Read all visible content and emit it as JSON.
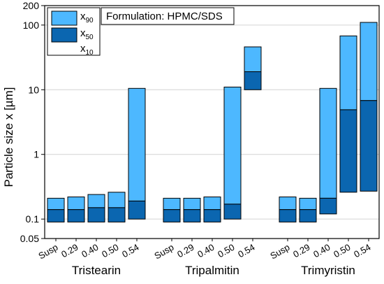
{
  "chart_data": {
    "type": "bar",
    "ylabel": "Particle size x [µm]",
    "ylabel_mu": "µ",
    "ylabel_pre": "Particle size x [",
    "ylabel_post": "m]",
    "yscale": "log",
    "ylim": [
      0.05,
      200
    ],
    "yticks": [
      0.05,
      0.1,
      1,
      10,
      100,
      200
    ],
    "ytick_labels": [
      "0.05",
      "0.1",
      "1",
      "10",
      "100",
      "200"
    ],
    "grid": true,
    "annotation": "Formulation: HPMC/SDS",
    "legend": {
      "placement": "top-left",
      "entries": [
        {
          "base": "x",
          "sub": "90",
          "color": "#4db8ff"
        },
        {
          "base": "x",
          "sub": "50",
          "color": "#0b66b0"
        },
        {
          "base": "x",
          "sub": "10",
          "color": ""
        }
      ]
    },
    "colors": {
      "upper": "#4db8ff",
      "lower": "#0b66b0",
      "edge": "#000000"
    },
    "groups": [
      {
        "name": "Tristearin",
        "categories": [
          "Susp",
          "0.29",
          "0.40",
          "0.50",
          "0.54"
        ],
        "x10": [
          0.09,
          0.09,
          0.09,
          0.09,
          0.1
        ],
        "x50": [
          0.14,
          0.14,
          0.15,
          0.15,
          0.19
        ],
        "x90": [
          0.21,
          0.22,
          0.24,
          0.26,
          10.5
        ]
      },
      {
        "name": "Tripalmitin",
        "categories": [
          "Susp",
          "0.29",
          "0.40",
          "0.50",
          "0.54"
        ],
        "x10": [
          0.09,
          0.09,
          0.09,
          0.1,
          10
        ],
        "x50": [
          0.14,
          0.14,
          0.14,
          0.17,
          19
        ],
        "x90": [
          0.21,
          0.21,
          0.22,
          11,
          46
        ]
      },
      {
        "name": "Trimyristin",
        "categories": [
          "Susp",
          "0.29",
          "0.40",
          "0.50",
          "0.54"
        ],
        "x10": [
          0.09,
          0.09,
          0.12,
          0.26,
          0.27
        ],
        "x50": [
          0.14,
          0.14,
          0.21,
          4.9,
          6.8
        ],
        "x90": [
          0.22,
          0.21,
          10.5,
          68,
          110
        ]
      }
    ]
  }
}
